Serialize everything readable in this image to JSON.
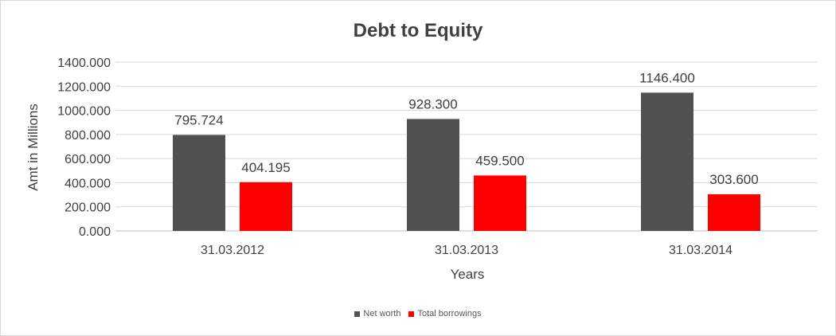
{
  "chart_data": {
    "type": "bar",
    "title": "Debt to Equity",
    "xlabel": "Years",
    "ylabel": "Amt in Millions",
    "categories": [
      "31.03.2012",
      "31.03.2013",
      "31.03.2014"
    ],
    "series": [
      {
        "name": "Net worth",
        "values": [
          795.724,
          928.3,
          1146.4
        ],
        "labels": [
          "795.724",
          "928.300",
          "1146.400"
        ],
        "color": "#505050"
      },
      {
        "name": "Total borrowings",
        "values": [
          404.195,
          459.5,
          303.6
        ],
        "labels": [
          "404.195",
          "459.500",
          "303.600"
        ],
        "color": "#ff0000"
      }
    ],
    "ylim": [
      0,
      1400
    ],
    "yticks": [
      "0.000",
      "200.000",
      "400.000",
      "600.000",
      "800.000",
      "1000.000",
      "1200.000",
      "1400.000"
    ],
    "grid": true,
    "legend_position": "bottom"
  }
}
